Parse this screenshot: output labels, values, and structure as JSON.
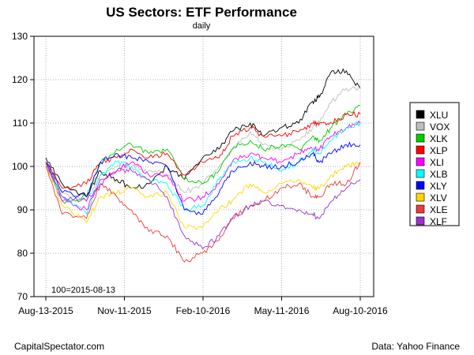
{
  "chart_data": {
    "type": "line",
    "title": "US Sectors: ETF Performance",
    "subtitle": "daily",
    "base_note": "100=2015-08-13",
    "x_ticks": [
      "Aug-13-2015",
      "Nov-11-2015",
      "Feb-10-2016",
      "May-11-2016",
      "Aug-10-2016"
    ],
    "x_range": [
      "2015-08-13",
      "2016-08-10"
    ],
    "ylim": [
      70,
      130
    ],
    "y_ticks": [
      70,
      80,
      90,
      100,
      110,
      120,
      130
    ],
    "grid": true,
    "legend_position": "right",
    "x": [
      "2015-08-13",
      "2015-09-01",
      "2015-09-29",
      "2015-10-15",
      "2015-11-03",
      "2015-11-20",
      "2015-12-10",
      "2015-12-31",
      "2016-01-20",
      "2016-02-10",
      "2016-02-29",
      "2016-03-15",
      "2016-04-05",
      "2016-04-20",
      "2016-05-11",
      "2016-05-31",
      "2016-06-16",
      "2016-06-24",
      "2016-07-08",
      "2016-07-25",
      "2016-08-10"
    ],
    "series": [
      {
        "name": "XLU",
        "color": "#000000",
        "values": [
          102,
          96,
          93,
          99,
          97,
          95,
          96,
          100,
          97,
          102,
          104,
          108,
          110,
          107,
          109,
          110,
          115,
          116,
          122,
          122,
          118
        ]
      },
      {
        "name": "VOX",
        "color": "#bebebe",
        "values": [
          101,
          94,
          92,
          98,
          100,
          100,
          99,
          98,
          94,
          96,
          100,
          104,
          108,
          105,
          104,
          106,
          109,
          110,
          115,
          118,
          118
        ]
      },
      {
        "name": "XLK",
        "color": "#00cd00",
        "values": [
          101,
          92,
          93,
          101,
          104,
          105,
          103,
          104,
          97,
          96,
          99,
          104,
          106,
          104,
          105,
          104,
          107,
          106,
          109,
          112,
          114
        ]
      },
      {
        "name": "XLP",
        "color": "#ff0000",
        "values": [
          101,
          95,
          96,
          101,
          102,
          104,
          102,
          103,
          98,
          101,
          102,
          107,
          109,
          107,
          107,
          108,
          110,
          110,
          110,
          112,
          112
        ]
      },
      {
        "name": "XLI",
        "color": "#ff00ff",
        "values": [
          101,
          92,
          90,
          97,
          99,
          101,
          98,
          98,
          92,
          93,
          96,
          101,
          103,
          102,
          101,
          103,
          104,
          104,
          107,
          109,
          110
        ]
      },
      {
        "name": "XLB",
        "color": "#00ffff",
        "values": [
          100,
          93,
          89,
          98,
          101,
          100,
          97,
          96,
          90,
          91,
          97,
          101,
          102,
          101,
          99,
          101,
          104,
          103,
          106,
          109,
          110
        ]
      },
      {
        "name": "XLY",
        "color": "#0000ff",
        "values": [
          101,
          94,
          93,
          101,
          103,
          102,
          101,
          100,
          90,
          89,
          94,
          99,
          101,
          100,
          100,
          101,
          103,
          101,
          103,
          105,
          105
        ]
      },
      {
        "name": "XLV",
        "color": "#ffd700",
        "values": [
          100,
          91,
          87,
          93,
          94,
          95,
          93,
          94,
          86,
          86,
          90,
          92,
          96,
          94,
          96,
          97,
          95,
          95,
          98,
          100,
          101
        ]
      },
      {
        "name": "XLE",
        "color": "#ee3b3b",
        "values": [
          100,
          89,
          88,
          96,
          93,
          90,
          85,
          84,
          78,
          80,
          83,
          88,
          91,
          92,
          95,
          96,
          93,
          93,
          96,
          96,
          101
        ]
      },
      {
        "name": "XLF",
        "color": "#9a32cd",
        "values": [
          101,
          93,
          92,
          96,
          99,
          99,
          97,
          93,
          84,
          81,
          84,
          88,
          91,
          92,
          91,
          90,
          89,
          88,
          92,
          95,
          97
        ]
      }
    ]
  },
  "footer": {
    "left": "CapitalSpectator.com",
    "right": "Data: Yahoo Finance"
  }
}
